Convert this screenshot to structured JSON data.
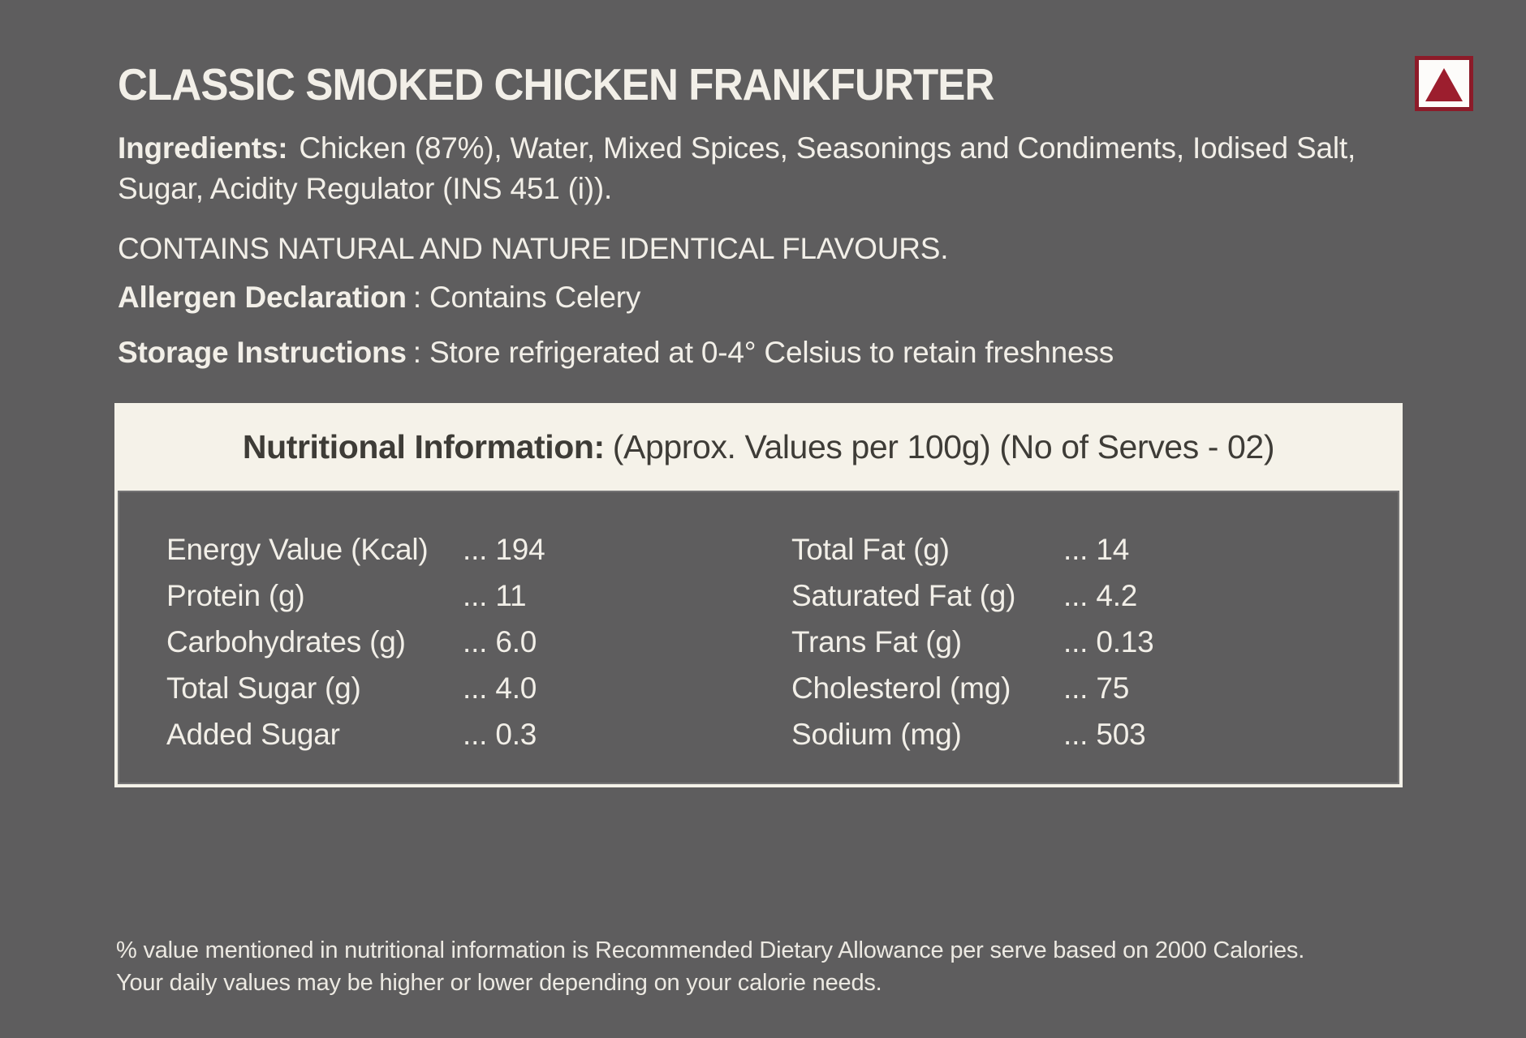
{
  "page": {
    "background_color": "#5e5d5e",
    "text_color": "#f2efe8",
    "accent_maroon": "#8c1b29",
    "panel_cream": "#f5f2e9",
    "panel_text_color": "#3e3c37"
  },
  "veg_mark": {
    "meaning": "non-vegetarian",
    "triangle_color": "#9c1e2e",
    "border_color": "#8c1b29"
  },
  "title": "CLASSIC SMOKED CHICKEN FRANKFURTER",
  "ingredients": {
    "label": "Ingredients:",
    "text": "Chicken (87%), Water, Mixed Spices, Seasonings and Condiments, Iodised Salt, Sugar, Acidity Regulator (INS 451 (i))."
  },
  "flavour_note": "CONTAINS NATURAL AND NATURE IDENTICAL FLAVOURS.",
  "allergen": {
    "label": "Allergen Declaration",
    "text": ": Contains Celery"
  },
  "storage": {
    "label": "Storage Instructions",
    "text": ": Store refrigerated at 0-4° Celsius to retain freshness"
  },
  "nutrition": {
    "header": {
      "label": "Nutritional Information:",
      "suffix": "(Approx. Values per 100g) (No of Serves - 02)"
    },
    "left": [
      {
        "label": "Energy Value (Kcal)",
        "value": "... 194"
      },
      {
        "label": "Protein (g)",
        "value": "... 11"
      },
      {
        "label": "Carbohydrates (g)",
        "value": "... 6.0"
      },
      {
        "label": "Total Sugar (g)",
        "value": "... 4.0"
      },
      {
        "label": "Added Sugar",
        "value": "... 0.3"
      }
    ],
    "right": [
      {
        "label": "Total Fat (g)",
        "value": "... 14"
      },
      {
        "label": "Saturated Fat (g)",
        "value": "... 4.2"
      },
      {
        "label": "Trans Fat (g)",
        "value": "... 0.13"
      },
      {
        "label": "Cholesterol (mg)",
        "value": "... 75"
      },
      {
        "label": "Sodium (mg)",
        "value": "... 503"
      }
    ]
  },
  "footer": {
    "line1": "% value mentioned in nutritional information is Recommended Dietary Allowance per serve based on 2000 Calories.",
    "line2": "Your daily values may be higher or lower depending on your calorie needs."
  }
}
